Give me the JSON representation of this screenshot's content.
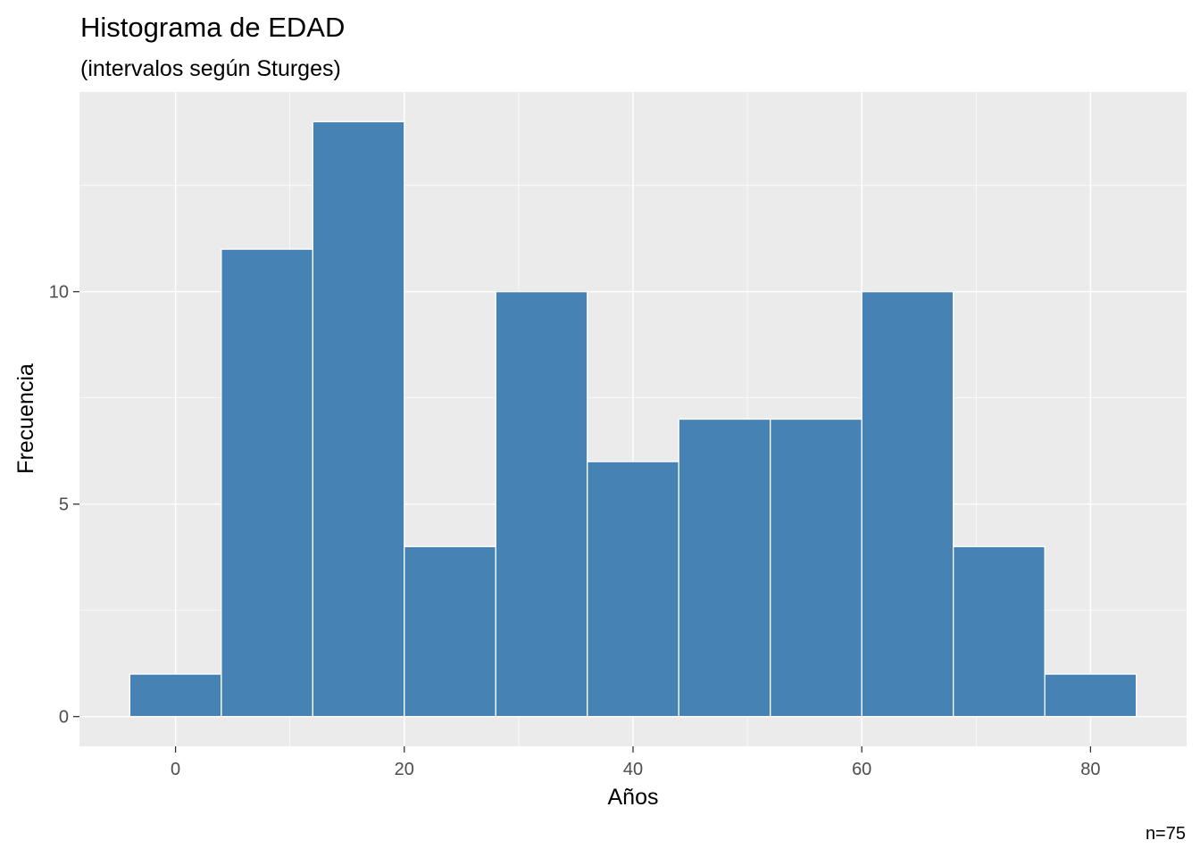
{
  "chart_data": {
    "type": "bar",
    "title": "Histograma de EDAD",
    "subtitle": "(intervalos según Sturges)",
    "xlabel": "Años",
    "ylabel": "Frecuencia",
    "caption": "n=75",
    "bins": [
      {
        "x_start": -4,
        "x_end": 4,
        "count": 1
      },
      {
        "x_start": 4,
        "x_end": 12,
        "count": 11
      },
      {
        "x_start": 12,
        "x_end": 20,
        "count": 14
      },
      {
        "x_start": 20,
        "x_end": 28,
        "count": 4
      },
      {
        "x_start": 28,
        "x_end": 36,
        "count": 10
      },
      {
        "x_start": 36,
        "x_end": 44,
        "count": 6
      },
      {
        "x_start": 44,
        "x_end": 52,
        "count": 7
      },
      {
        "x_start": 52,
        "x_end": 60,
        "count": 7
      },
      {
        "x_start": 60,
        "x_end": 68,
        "count": 10
      },
      {
        "x_start": 68,
        "x_end": 76,
        "count": 4
      },
      {
        "x_start": 76,
        "x_end": 84,
        "count": 1
      }
    ],
    "xlim": [
      -8.4,
      88.4
    ],
    "ylim": [
      -0.7,
      14.7
    ],
    "x_ticks": [
      0,
      20,
      40,
      60,
      80
    ],
    "x_minor_ticks": [
      10,
      30,
      50,
      70
    ],
    "y_ticks": [
      0,
      5,
      10
    ],
    "y_minor_ticks": [
      2.5,
      7.5,
      12.5
    ],
    "grid": true,
    "legend": "none",
    "colors": {
      "bar_fill": "#4682B4",
      "bar_outline": "#ffffff",
      "panel_background": "#EBEBEB",
      "grid": "#ffffff"
    }
  }
}
